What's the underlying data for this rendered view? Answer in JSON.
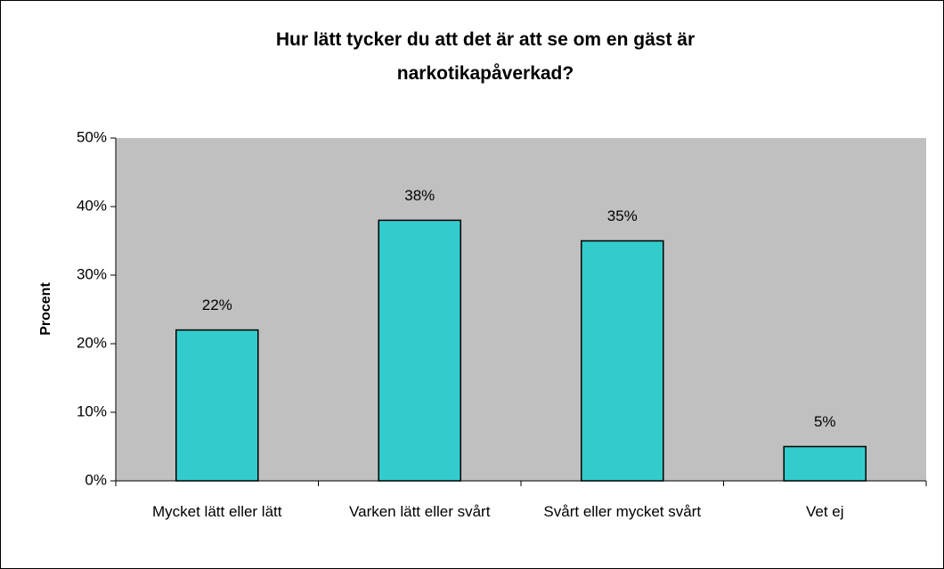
{
  "chart_data": {
    "type": "bar",
    "title": "Hur lätt tycker du att det är att se om en gäst är narkotikapåverkad?",
    "y_label": "Procent",
    "categories": [
      "Mycket lätt eller lätt",
      "Varken lätt eller svårt",
      "Svårt eller mycket svårt",
      "Vet ej"
    ],
    "values": [
      22,
      38,
      35,
      5
    ],
    "value_labels": [
      "22%",
      "38%",
      "35%",
      "5%"
    ],
    "color": "#33cccc",
    "plot_background": "#c0c0c0",
    "ylim": [
      0,
      50
    ],
    "yticks": [
      {
        "value": 0,
        "label": "0%"
      },
      {
        "value": 10,
        "label": "10%"
      },
      {
        "value": 20,
        "label": "20%"
      },
      {
        "value": 30,
        "label": "30%"
      },
      {
        "value": 40,
        "label": "40%"
      },
      {
        "value": 50,
        "label": "50%"
      }
    ],
    "grid": false
  }
}
